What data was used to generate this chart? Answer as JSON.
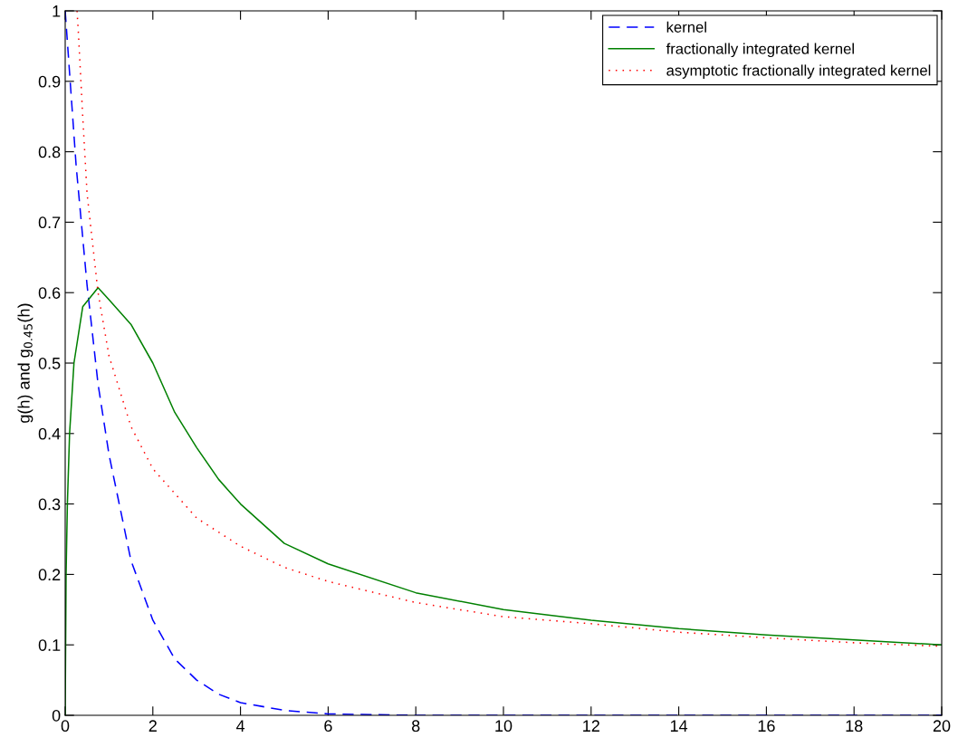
{
  "chart_data": {
    "type": "line",
    "ylabel": "g(h) and g$_{0.45}$(h)",
    "xlim": [
      0,
      20
    ],
    "ylim": [
      0,
      1
    ],
    "xticks": [
      0,
      2,
      4,
      6,
      8,
      10,
      12,
      14,
      16,
      18,
      20
    ],
    "yticks": [
      0,
      0.1,
      0.2,
      0.3,
      0.4,
      0.5,
      0.6,
      0.7,
      0.8,
      0.9,
      1
    ],
    "grid": false,
    "legend": "top right",
    "marker": "none",
    "series": [
      {
        "name": "kernel",
        "color": "#0000ff",
        "line_style": "dashed",
        "x": [
          0,
          0.25,
          0.5,
          0.75,
          1,
          1.5,
          2,
          2.5,
          3,
          3.5,
          4,
          5,
          6,
          8,
          10,
          20
        ],
        "values": [
          1,
          0.78,
          0.61,
          0.47,
          0.37,
          0.22,
          0.135,
          0.08,
          0.05,
          0.03,
          0.018,
          0.007,
          0.002,
          0,
          0,
          0
        ]
      },
      {
        "name": "fractionally integrated kernel",
        "color": "#008000",
        "line_style": "solid",
        "x": [
          0,
          0.02,
          0.05,
          0.1,
          0.2,
          0.4,
          0.75,
          1,
          1.5,
          2,
          2.5,
          3,
          3.5,
          4,
          5,
          6,
          8,
          10,
          12,
          14,
          16,
          18,
          20
        ],
        "values": [
          0,
          0.2,
          0.3,
          0.4,
          0.5,
          0.58,
          0.607,
          0.59,
          0.555,
          0.5,
          0.43,
          0.38,
          0.335,
          0.3,
          0.244,
          0.215,
          0.174,
          0.15,
          0.135,
          0.123,
          0.114,
          0.107,
          0.1
        ]
      },
      {
        "name": "asymptotic fractionally integrated kernel",
        "color": "#ff0000",
        "line_style": "dotted",
        "x": [
          0.27,
          0.3,
          0.4,
          0.5,
          0.75,
          1,
          1.5,
          2,
          3,
          4,
          5,
          6,
          8,
          10,
          12,
          14,
          16,
          18,
          20
        ],
        "values": [
          1,
          0.97,
          0.85,
          0.74,
          0.6,
          0.51,
          0.41,
          0.35,
          0.28,
          0.24,
          0.21,
          0.19,
          0.16,
          0.14,
          0.13,
          0.118,
          0.11,
          0.103,
          0.098
        ]
      }
    ]
  }
}
